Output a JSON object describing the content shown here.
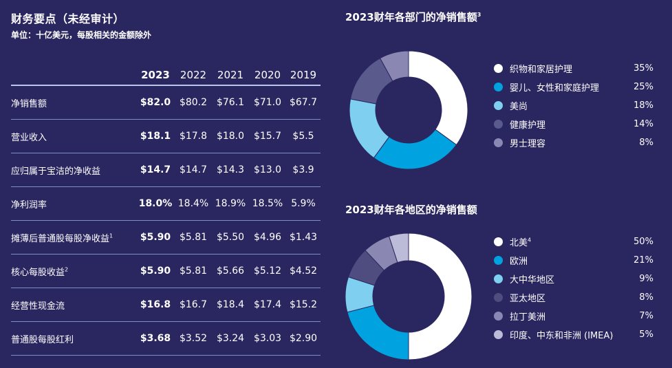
{
  "header": {
    "title": "财务要点（未经审计）",
    "subtitle": "单位：十亿美元，每股相关的金额除外"
  },
  "table": {
    "columns": [
      "",
      "2023",
      "2022",
      "2021",
      "2020",
      "2019"
    ],
    "rows": [
      {
        "label": "净销售额",
        "values": [
          "$82.0",
          "$80.2",
          "$76.1",
          "$71.0",
          "$67.7"
        ]
      },
      {
        "label": "营业收入",
        "values": [
          "$18.1",
          "$17.8",
          "$18.0",
          "$15.7",
          "$5.5"
        ]
      },
      {
        "label": "应归属于宝洁的净收益",
        "values": [
          "$14.7",
          "$14.7",
          "$14.3",
          "$13.0",
          "$3.9"
        ]
      },
      {
        "label": "净利润率",
        "values": [
          "18.0%",
          "18.4%",
          "18.9%",
          "18.5%",
          "5.9%"
        ]
      },
      {
        "label": "摊薄后普通股每股净收益",
        "sup": "1",
        "values": [
          "$5.90",
          "$5.81",
          "$5.50",
          "$4.96",
          "$1.43"
        ]
      },
      {
        "label": "核心每股收益",
        "sup": "2",
        "values": [
          "$5.90",
          "$5.81",
          "$5.66",
          "$5.12",
          "$4.52"
        ]
      },
      {
        "label": "经营性现金流",
        "values": [
          "$16.8",
          "$16.7",
          "$18.4",
          "$17.4",
          "$15.2"
        ]
      },
      {
        "label": "普通股每股红利",
        "values": [
          "$3.68",
          "$3.52",
          "$3.24",
          "$3.03",
          "$2.90"
        ]
      }
    ]
  },
  "chart_data": [
    {
      "type": "pie",
      "title": "2023财年各部门的净销售额",
      "title_sup": "3",
      "categories": [
        "织物和家居护理",
        "婴儿、女性和家庭护理",
        "美尚",
        "健康护理",
        "男士理容"
      ],
      "values": [
        35,
        25,
        18,
        14,
        8
      ],
      "value_labels": [
        "35%",
        "25%",
        "18%",
        "14%",
        "8%"
      ],
      "colors": [
        "#ffffff",
        "#00a3e0",
        "#7ecff0",
        "#5b5a8c",
        "#8a88b3"
      ]
    },
    {
      "type": "pie",
      "title": "2023财年各地区的净销售额",
      "categories": [
        "北美",
        "欧洲",
        "大中华地区",
        "亚太地区",
        "拉丁美洲",
        "印度、中东和非洲 (IMEA)"
      ],
      "category_sups": [
        "4",
        "",
        "",
        "",
        "",
        ""
      ],
      "values": [
        50,
        21,
        9,
        8,
        7,
        5
      ],
      "value_labels": [
        "50%",
        "21%",
        "9%",
        "8%",
        "7%",
        "5%"
      ],
      "colors": [
        "#ffffff",
        "#00a3e0",
        "#7ecff0",
        "#4f4d80",
        "#8a88b3",
        "#bdbcd8"
      ]
    }
  ]
}
